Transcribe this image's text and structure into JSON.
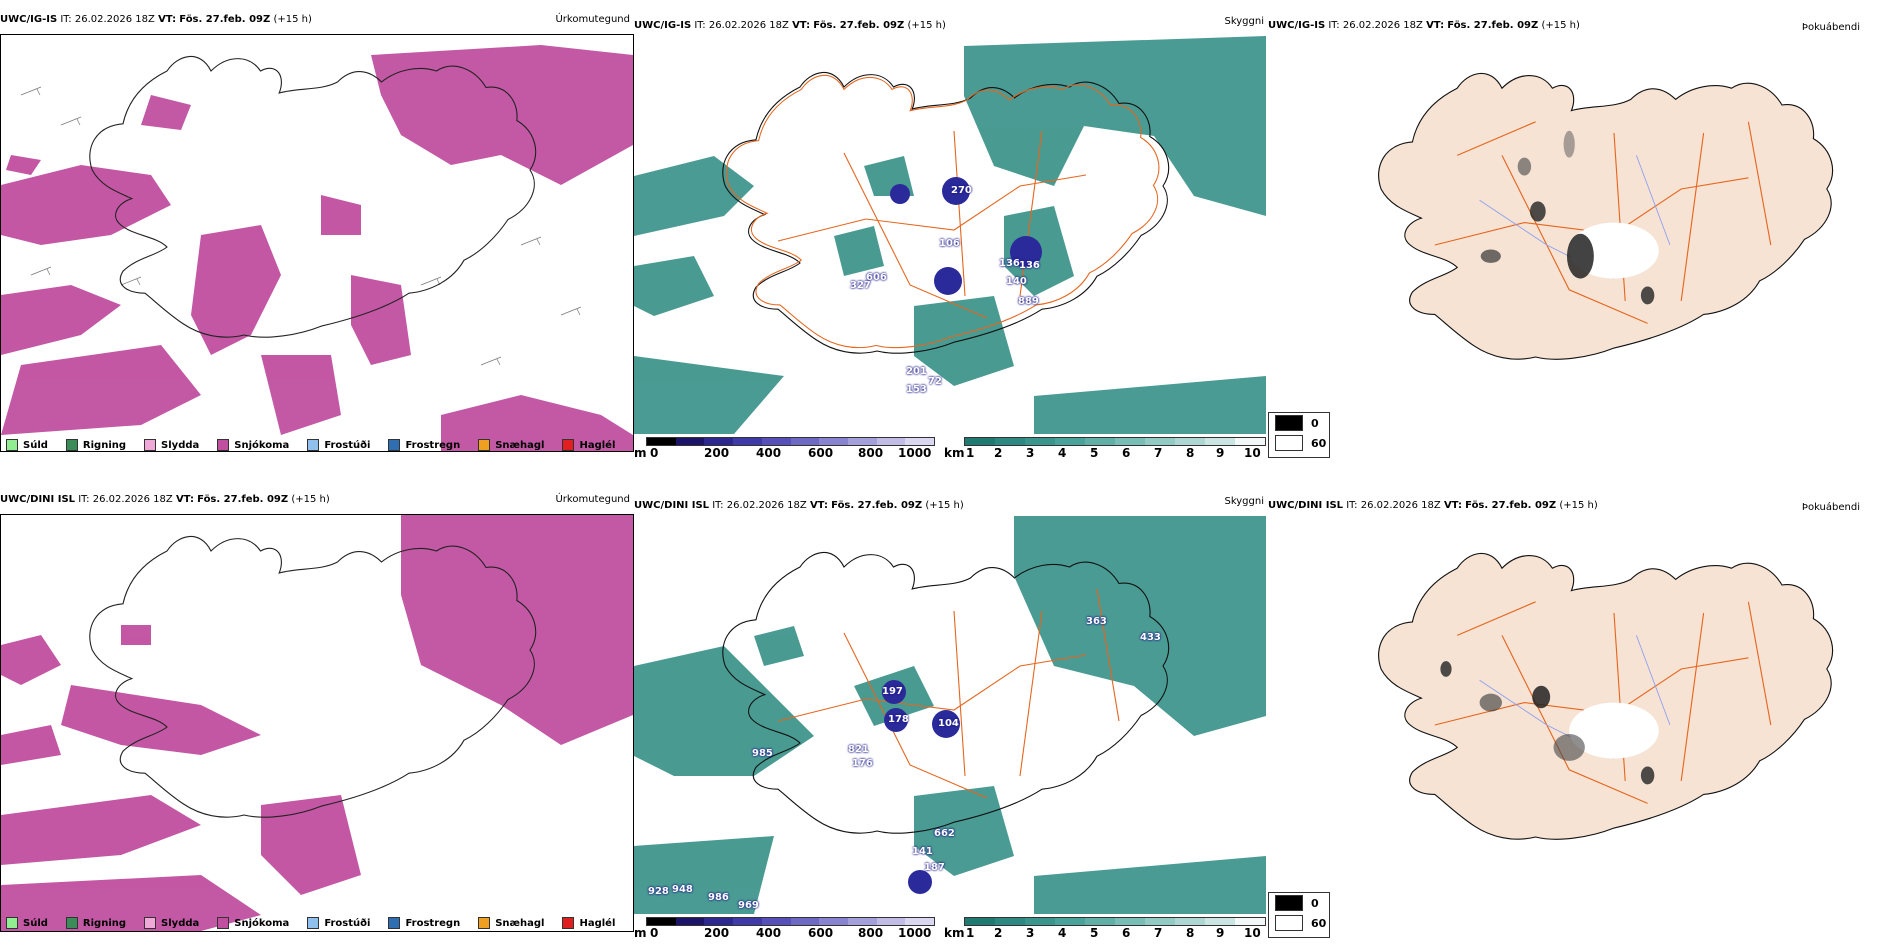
{
  "rows": [
    {
      "model": "UWC/IG-IS",
      "it": "IT: 26.02.2026 18Z",
      "vt_label": "VT:",
      "vt": "Fös. 27.feb. 09Z",
      "lead": "(+15 h)",
      "titles": [
        "Úrkomutegund",
        "Skyggni",
        "Þokuábendi"
      ],
      "vis_labels": [
        "270",
        "106",
        "136",
        "140",
        "889",
        "327",
        "606",
        "153",
        "72",
        "201",
        "136"
      ]
    },
    {
      "model": "UWC/DINI ISL",
      "it": "IT: 26.02.2026 18Z",
      "vt_label": "VT:",
      "vt": "Fös. 27.feb. 09Z",
      "lead": "(+15 h)",
      "titles": [
        "Úrkomutegund",
        "Skyggni",
        "Þokuábendi"
      ],
      "vis_labels": [
        "363",
        "433",
        "197",
        "178",
        "104",
        "985",
        "821",
        "176",
        "662",
        "141",
        "187",
        "928",
        "948",
        "986",
        "969"
      ]
    }
  ],
  "precip_legend": [
    "Súld",
    "Rigning",
    "Slydda",
    "Snjókoma",
    "Frostúði",
    "Frostregn",
    "Snæhagl",
    "Haglél"
  ],
  "colors": {
    "precip": [
      "#90ee90",
      "#3c8c5a",
      "#f0a8d8",
      "#c04fa0",
      "#90c0ee",
      "#2f6eb0",
      "#f0a020",
      "#e02020"
    ],
    "teal": "#2a8a80",
    "land": "#f6e3d4",
    "roads": "#e5661e"
  },
  "ceiling_bar": {
    "unit": "m",
    "ticks": [
      "0",
      "200",
      "400",
      "600",
      "800",
      "1000"
    ]
  },
  "visibility_bar": {
    "unit": "km",
    "ticks": [
      "1",
      "2",
      "3",
      "4",
      "5",
      "6",
      "7",
      "8",
      "9",
      "10"
    ]
  },
  "fog_legend": [
    "0",
    "60"
  ]
}
